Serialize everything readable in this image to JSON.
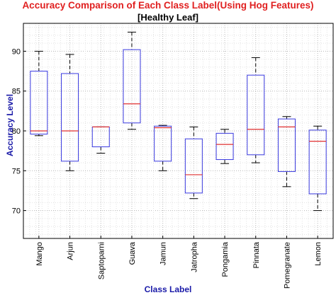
{
  "chart_data": {
    "type": "box",
    "title": "Accuracy Comparison of Each Class Label(Using Hog Features)",
    "subtitle": "[Healthy Leaf]",
    "xlabel": "Class Label",
    "ylabel": "Accuracy Level",
    "ylim": [
      66.5,
      93.5
    ],
    "yticks": [
      70,
      75,
      80,
      85,
      90
    ],
    "grid": true,
    "categories": [
      "Mango",
      "Arjun",
      "Saptoparni",
      "Guava",
      "Jamun",
      "Jatropha",
      "Pongamia",
      "Pinnata",
      "Pomegranate",
      "Lemon"
    ],
    "boxes": [
      {
        "whisker_low": 79.4,
        "q1": 79.6,
        "median": 80.0,
        "q3": 87.5,
        "whisker_high": 90.0
      },
      {
        "whisker_low": 75.0,
        "q1": 76.2,
        "median": 80.0,
        "q3": 87.2,
        "whisker_high": 89.6
      },
      {
        "whisker_low": 77.2,
        "q1": 78.0,
        "median": 80.5,
        "q3": 80.5,
        "whisker_high": 80.5
      },
      {
        "whisker_low": 80.2,
        "q1": 81.0,
        "median": 83.4,
        "q3": 90.2,
        "whisker_high": 92.4
      },
      {
        "whisker_low": 75.0,
        "q1": 76.2,
        "median": 80.4,
        "q3": 80.6,
        "whisker_high": 80.7
      },
      {
        "whisker_low": 71.5,
        "q1": 72.2,
        "median": 74.5,
        "q3": 79.0,
        "whisker_high": 80.5
      },
      {
        "whisker_low": 75.9,
        "q1": 76.4,
        "median": 78.3,
        "q3": 79.7,
        "whisker_high": 80.2
      },
      {
        "whisker_low": 76.0,
        "q1": 77.0,
        "median": 80.2,
        "q3": 87.0,
        "whisker_high": 89.2
      },
      {
        "whisker_low": 73.0,
        "q1": 74.9,
        "median": 80.5,
        "q3": 81.5,
        "whisker_high": 81.8
      },
      {
        "whisker_low": 70.0,
        "q1": 72.1,
        "median": 78.7,
        "q3": 80.1,
        "whisker_high": 80.6
      }
    ],
    "colors": {
      "box": "#3a3ae0",
      "median": "#e03030",
      "whisker": "#000000",
      "title": "#e02020",
      "axis_label": "#1a1aa8"
    }
  }
}
